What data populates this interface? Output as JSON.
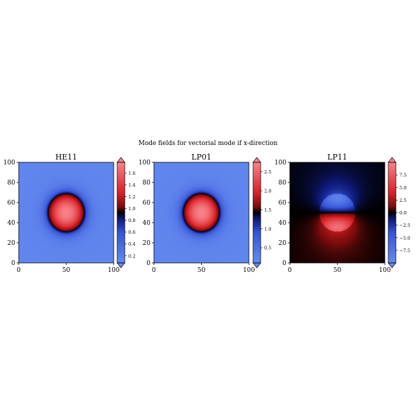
{
  "figure": {
    "suptitle": "Mode fields for vectorial mode if x-direction"
  },
  "chart_data": [
    {
      "type": "heatmap",
      "title": "HE11",
      "xlabel": "",
      "ylabel": "",
      "xlim": [
        0,
        100
      ],
      "ylim": [
        0,
        100
      ],
      "x_ticks": [
        0,
        50,
        100
      ],
      "y_ticks": [
        0,
        20,
        40,
        60,
        80,
        100
      ],
      "field": "radial",
      "center": [
        50,
        50
      ],
      "core_radius": 19,
      "colormap": "blue-black-red",
      "vmin": 0.08,
      "vmax": 1.78,
      "colorbar_ticks": [
        0.2,
        0.4,
        0.6,
        0.8,
        1.0,
        1.2,
        1.4,
        1.6
      ],
      "colorbar_ticklabels": [
        "0.2",
        "0.4",
        "0.6",
        "0.8",
        "1.0",
        "1.2",
        "1.4",
        "1.6"
      ],
      "colorbar_extend": "both",
      "grid": false
    },
    {
      "type": "heatmap",
      "title": "LP01",
      "xlabel": "",
      "ylabel": "",
      "xlim": [
        0,
        100
      ],
      "ylim": [
        0,
        100
      ],
      "x_ticks": [
        0,
        50,
        100
      ],
      "y_ticks": [
        0,
        20,
        40,
        60,
        80,
        100
      ],
      "field": "radial",
      "center": [
        50,
        50
      ],
      "core_radius": 19,
      "colormap": "blue-black-red",
      "vmin": 0.1,
      "vmax": 2.75,
      "colorbar_ticks": [
        0.5,
        1.0,
        1.5,
        2.0,
        2.5
      ],
      "colorbar_ticklabels": [
        "0.5",
        "1.0",
        "1.5",
        "2.0",
        "2.5"
      ],
      "colorbar_extend": "both",
      "grid": false
    },
    {
      "type": "heatmap",
      "title": "LP11",
      "xlabel": "",
      "ylabel": "",
      "xlim": [
        0,
        100
      ],
      "ylim": [
        0,
        100
      ],
      "x_ticks": [
        0,
        50,
        100
      ],
      "y_ticks": [
        0,
        20,
        40,
        60,
        80,
        100
      ],
      "field": "dipole",
      "center": [
        50,
        50
      ],
      "core_radius": 19,
      "colormap": "blue-black-red",
      "vmin": -10,
      "vmax": 10,
      "colorbar_ticks": [
        7.5,
        5.0,
        2.5,
        0.0,
        -2.5,
        -5.0,
        -7.5
      ],
      "colorbar_ticklabels": [
        "7.5",
        "5.0",
        "2.5",
        "0.0",
        "−2.5",
        "−5.0",
        "−7.5"
      ],
      "colorbar_extend": "both",
      "grid": false
    }
  ]
}
